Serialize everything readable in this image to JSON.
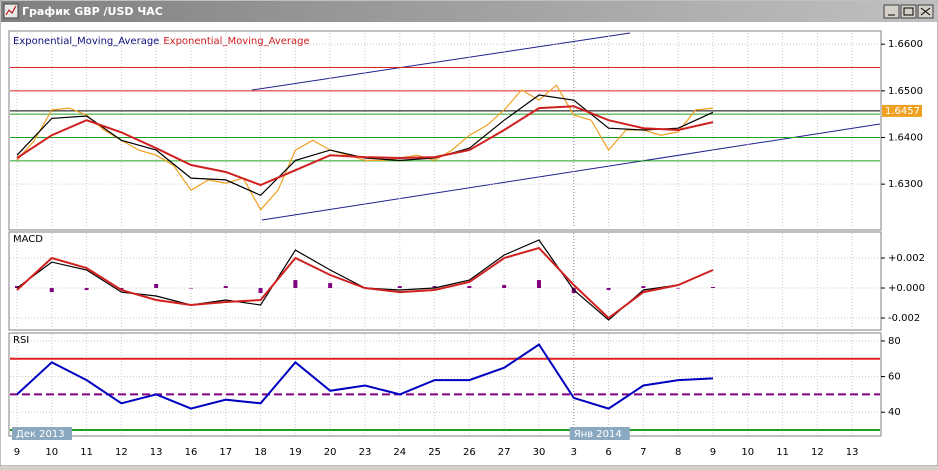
{
  "window": {
    "title": "График GBP /USD ЧАС"
  },
  "chart_data": [
    {
      "type": "line",
      "legend": [
        "Exponential_Moving_Average",
        "Exponential_Moving_Average"
      ],
      "xlim": [
        -0.2,
        24.8
      ],
      "ylim": [
        1.6206,
        1.6624
      ],
      "yticks": [
        {
          "value": 1.63,
          "label": "1.6300"
        },
        {
          "value": 1.64,
          "label": "1.6400"
        },
        {
          "value": 1.65,
          "label": "1.6500"
        },
        {
          "value": 1.66,
          "label": "1.6600"
        }
      ],
      "grid": true,
      "hlines": [
        {
          "value": 1.655,
          "color": "#e02020"
        },
        {
          "value": 1.65,
          "color": "#e02020"
        },
        {
          "value": 1.6457,
          "color": "#000000"
        },
        {
          "value": 1.645,
          "color": "#20a020"
        },
        {
          "value": 1.64,
          "color": "#20a020"
        },
        {
          "value": 1.635,
          "color": "#20a020"
        }
      ],
      "last_price": 1.6457,
      "series": [
        {
          "color": "#f0a020",
          "x": [
            0,
            0.5,
            1,
            1.5,
            2,
            2.5,
            3,
            3.5,
            4,
            4.5,
            5,
            5.5,
            6,
            6.5,
            7,
            7.5,
            8,
            8.5,
            9,
            9.5,
            10,
            10.5,
            11,
            11.5,
            12,
            12.5,
            13,
            13.5,
            14,
            14.5,
            15,
            15.5,
            16,
            16.5,
            17,
            17.5,
            18,
            18.5,
            19,
            19.5,
            20
          ],
          "values": [
            1.6351,
            1.6394,
            1.6459,
            1.6463,
            1.6448,
            1.6416,
            1.6394,
            1.6373,
            1.6362,
            1.634,
            1.6287,
            1.6309,
            1.6302,
            1.6313,
            1.6245,
            1.6287,
            1.6373,
            1.6394,
            1.6373,
            1.6362,
            1.6351,
            1.6351,
            1.6356,
            1.6362,
            1.6351,
            1.6373,
            1.6405,
            1.6426,
            1.6459,
            1.6502,
            1.648,
            1.6512,
            1.6448,
            1.6437,
            1.6373,
            1.6416,
            1.6416,
            1.6405,
            1.6412,
            1.6459,
            1.6463
          ]
        },
        {
          "name": "Exponential_Moving_Average",
          "color": "#000000",
          "x": [
            0,
            1,
            2,
            3,
            4,
            5,
            6,
            7,
            8,
            9,
            10,
            11,
            12,
            13,
            14,
            15,
            16,
            17,
            18,
            19,
            20
          ],
          "values": [
            1.6362,
            1.6441,
            1.6446,
            1.6394,
            1.6373,
            1.6313,
            1.6309,
            1.6276,
            1.6351,
            1.6373,
            1.6356,
            1.6351,
            1.6356,
            1.6377,
            1.6437,
            1.6491,
            1.648,
            1.642,
            1.6416,
            1.642,
            1.6454
          ]
        },
        {
          "name": "Exponential_Moving_Average",
          "color": "#d02020",
          "x": [
            0,
            1,
            2,
            3,
            4,
            5,
            6,
            7,
            8,
            9,
            10,
            11,
            12,
            13,
            14,
            15,
            16,
            17,
            18,
            19,
            20
          ],
          "values": [
            1.6356,
            1.6405,
            1.6437,
            1.6411,
            1.6377,
            1.6341,
            1.6326,
            1.6298,
            1.633,
            1.6362,
            1.6358,
            1.6356,
            1.6358,
            1.6373,
            1.6416,
            1.6463,
            1.6467,
            1.6437,
            1.642,
            1.6416,
            1.6433
          ]
        }
      ]
    },
    {
      "type": "line",
      "title": "MACD",
      "xlim": [
        -0.2,
        24.8
      ],
      "ylim": [
        -0.0028,
        0.00367
      ],
      "yticks": [
        {
          "value": -0.002,
          "label": "-0.002"
        },
        {
          "value": 0,
          "label": "+0.000"
        },
        {
          "value": 0.002,
          "label": "+0.002"
        }
      ],
      "grid": true,
      "histogram": {
        "color": "#800080",
        "x": [
          0,
          1,
          2,
          3,
          4,
          5,
          6,
          7,
          8,
          9,
          10,
          11,
          12,
          13,
          14,
          15,
          16,
          17,
          18,
          19,
          20
        ],
        "values": [
          0.00013,
          -0.00027,
          -0.00013,
          -0.00013,
          0.00027,
          0,
          0.00013,
          -0.00033,
          0.00053,
          0.00033,
          0,
          0.00013,
          0.00013,
          0.00013,
          0.0002,
          0.00053,
          -0.00033,
          -0.00013,
          0.00013,
          0,
          7e-05
        ]
      },
      "series": [
        {
          "color": "#000000",
          "x": [
            0,
            1,
            2,
            3,
            4,
            5,
            6,
            7,
            8,
            9,
            10,
            11,
            12,
            13,
            14,
            15,
            16,
            17,
            18,
            19,
            20
          ],
          "values": [
            0,
            0.00173,
            0.0012,
            -0.00027,
            -0.00053,
            -0.00113,
            -0.0008,
            -0.00113,
            0.00253,
            0.0012,
            0,
            -0.00013,
            0,
            0.00053,
            0.0022,
            0.0032,
            -0.00013,
            -0.00213,
            -0.00013,
            0.0002,
            0.0012
          ]
        },
        {
          "color": "#d02020",
          "x": [
            0,
            1,
            2,
            3,
            4,
            5,
            6,
            7,
            8,
            9,
            10,
            11,
            12,
            13,
            14,
            15,
            16,
            17,
            18,
            19,
            20
          ],
          "values": [
            -0.00013,
            0.002,
            0.00133,
            -0.00013,
            -0.0008,
            -0.00113,
            -0.00093,
            -0.0008,
            0.002,
            0.00087,
            0,
            -0.00027,
            -0.00013,
            0.0004,
            0.002,
            0.00267,
            0.0002,
            -0.002,
            -0.00027,
            0.0002,
            0.0012
          ]
        }
      ]
    },
    {
      "type": "line",
      "title": "RSI",
      "xlim": [
        -0.2,
        24.8
      ],
      "ylim": [
        27.2,
        83.9
      ],
      "yticks": [
        40,
        60,
        80
      ],
      "grid": true,
      "hlines": [
        {
          "value": 70,
          "color": "#e02020"
        },
        {
          "value": 50,
          "color": "#800080",
          "dashed": true
        },
        {
          "value": 30,
          "color": "#20a020"
        }
      ],
      "series": [
        {
          "color": "#0000c0",
          "x": [
            0,
            1,
            2,
            3,
            4,
            5,
            6,
            7,
            8,
            9,
            10,
            11,
            12,
            13,
            14,
            15,
            16,
            17,
            18,
            19,
            20
          ],
          "values": [
            50,
            68,
            58,
            45,
            50,
            42,
            47,
            45,
            68,
            52,
            55,
            50,
            58,
            58,
            65,
            78,
            48,
            42,
            55,
            58,
            59
          ]
        }
      ],
      "xticks": [
        {
          "value": 0,
          "label": "9"
        },
        {
          "value": 1,
          "label": "10"
        },
        {
          "value": 2,
          "label": "11"
        },
        {
          "value": 3,
          "label": "12"
        },
        {
          "value": 4,
          "label": "13"
        },
        {
          "value": 5,
          "label": "16"
        },
        {
          "value": 6,
          "label": "17"
        },
        {
          "value": 7,
          "label": "18"
        },
        {
          "value": 8,
          "label": "19"
        },
        {
          "value": 9,
          "label": "20"
        },
        {
          "value": 10,
          "label": "23"
        },
        {
          "value": 11,
          "label": "24"
        },
        {
          "value": 12,
          "label": "25"
        },
        {
          "value": 13,
          "label": "26"
        },
        {
          "value": 14,
          "label": "27"
        },
        {
          "value": 15,
          "label": "30"
        },
        {
          "value": 16,
          "label": "3"
        },
        {
          "value": 17,
          "label": "6"
        },
        {
          "value": 18,
          "label": "7"
        },
        {
          "value": 19,
          "label": "8"
        },
        {
          "value": 20,
          "label": "9"
        },
        {
          "value": 21,
          "label": "10"
        },
        {
          "value": 22,
          "label": "11"
        },
        {
          "value": 23,
          "label": "12"
        },
        {
          "value": 24,
          "label": "13"
        }
      ],
      "annotations": [
        "Дек 2013",
        "Янв 2014"
      ]
    }
  ]
}
